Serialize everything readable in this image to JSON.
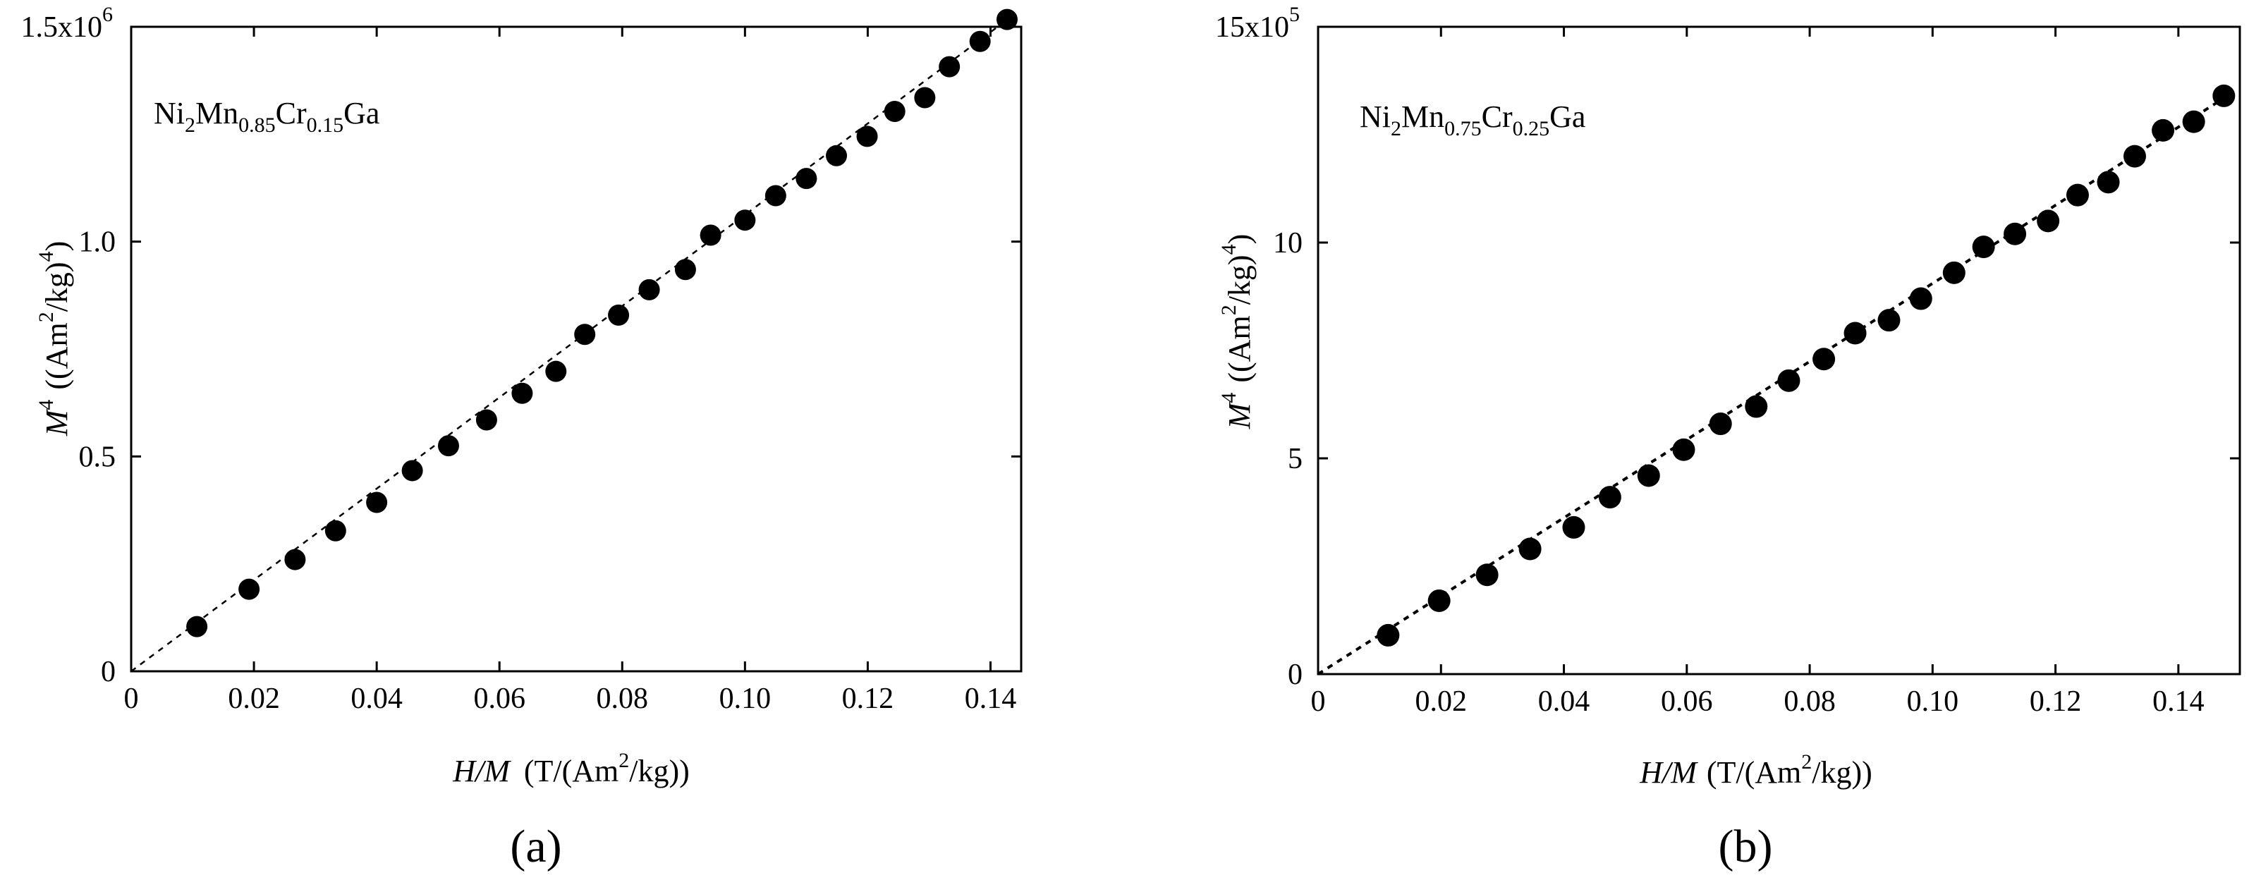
{
  "chart_data": [
    {
      "type": "scatter",
      "panel_label": "(a)",
      "sample_label": {
        "base": "Ni",
        "sub1": "2",
        "el2": "Mn",
        "sub2": "0.85",
        "el3": "Cr",
        "sub3": "0.15",
        "el4": "Ga"
      },
      "xlabel": {
        "var": "H/M",
        "unit": "(T/(Am",
        "sup": "2",
        "unit_end": "/kg))"
      },
      "ylabel": {
        "var": "M",
        "sup_var": "4",
        "unit": "((Am",
        "sup": "2",
        "unit_mid": "/kg)",
        "sup_end": "4",
        "unit_end": ")"
      },
      "xlim": [
        0,
        0.145
      ],
      "ylim": [
        0,
        1.5
      ],
      "x_ticks": [
        {
          "v": 0,
          "label": "0"
        },
        {
          "v": 0.02,
          "label": "0.02"
        },
        {
          "v": 0.04,
          "label": "0.04"
        },
        {
          "v": 0.06,
          "label": "0.06"
        },
        {
          "v": 0.08,
          "label": "0.08"
        },
        {
          "v": 0.1,
          "label": "0.10"
        },
        {
          "v": 0.12,
          "label": "0.12"
        },
        {
          "v": 0.14,
          "label": "0.14"
        }
      ],
      "y_ticks": [
        {
          "v": 0,
          "label": "0"
        },
        {
          "v": 0.5,
          "label": "0.5"
        },
        {
          "v": 1.0,
          "label": "1.0"
        },
        {
          "v": 1.5,
          "label": "1.5x10"
        }
      ],
      "y_multiplier_exp": "6",
      "fit": {
        "x": [
          0,
          0.144
        ],
        "y": [
          0,
          1.53
        ]
      },
      "series": [
        {
          "name": "data",
          "x": [
            0.0107,
            0.0192,
            0.0267,
            0.0333,
            0.04,
            0.0458,
            0.0517,
            0.0579,
            0.0637,
            0.0692,
            0.0739,
            0.0794,
            0.0844,
            0.0903,
            0.0944,
            0.1,
            0.105,
            0.11,
            0.1149,
            0.1199,
            0.1244,
            0.1293,
            0.1333,
            0.1383,
            0.1427
          ],
          "y": [
            0.104,
            0.191,
            0.26,
            0.327,
            0.393,
            0.467,
            0.525,
            0.585,
            0.647,
            0.698,
            0.784,
            0.829,
            0.888,
            0.935,
            1.015,
            1.05,
            1.107,
            1.147,
            1.2,
            1.245,
            1.303,
            1.335,
            1.407,
            1.466,
            1.517
          ]
        }
      ]
    },
    {
      "type": "scatter",
      "panel_label": "(b)",
      "sample_label": {
        "base": "Ni",
        "sub1": "2",
        "el2": "Mn",
        "sub2": "0.75",
        "el3": "Cr",
        "sub3": "0.25",
        "el4": "Ga"
      },
      "xlabel": {
        "var": "H/M",
        "unit": "(T/(Am",
        "sup": "2",
        "unit_end": "/kg))"
      },
      "ylabel": {
        "var": "M",
        "sup_var": "4",
        "unit": "((Am",
        "sup": "2",
        "unit_mid": "/kg)",
        "sup_end": "4",
        "unit_end": ")"
      },
      "xlim": [
        0,
        0.15
      ],
      "ylim": [
        0,
        15
      ],
      "x_ticks": [
        {
          "v": 0,
          "label": "0"
        },
        {
          "v": 0.02,
          "label": "0.02"
        },
        {
          "v": 0.04,
          "label": "0.04"
        },
        {
          "v": 0.06,
          "label": "0.06"
        },
        {
          "v": 0.08,
          "label": "0.08"
        },
        {
          "v": 0.1,
          "label": "0.10"
        },
        {
          "v": 0.12,
          "label": "0.12"
        },
        {
          "v": 0.14,
          "label": "0.14"
        }
      ],
      "y_ticks": [
        {
          "v": 0,
          "label": "0"
        },
        {
          "v": 5,
          "label": "5"
        },
        {
          "v": 10,
          "label": "10"
        },
        {
          "v": 15,
          "label": "15x10"
        }
      ],
      "y_multiplier_exp": "5",
      "fit": {
        "x": [
          0,
          0.148
        ],
        "y": [
          0,
          13.4
        ]
      },
      "series": [
        {
          "name": "data",
          "x": [
            0.0114,
            0.0197,
            0.0275,
            0.0345,
            0.0416,
            0.0475,
            0.0538,
            0.0595,
            0.0655,
            0.0713,
            0.0766,
            0.0823,
            0.0874,
            0.0929,
            0.0981,
            0.1035,
            0.1083,
            0.1134,
            0.1188,
            0.1236,
            0.1286,
            0.1329,
            0.1375,
            0.1425,
            0.1474
          ],
          "y": [
            0.9,
            1.7,
            2.3,
            2.9,
            3.4,
            4.1,
            4.6,
            5.2,
            5.8,
            6.2,
            6.8,
            7.3,
            7.9,
            8.2,
            8.7,
            9.3,
            9.9,
            10.2,
            10.5,
            11.1,
            11.4,
            12.0,
            12.6,
            12.8,
            13.4
          ]
        }
      ]
    }
  ]
}
